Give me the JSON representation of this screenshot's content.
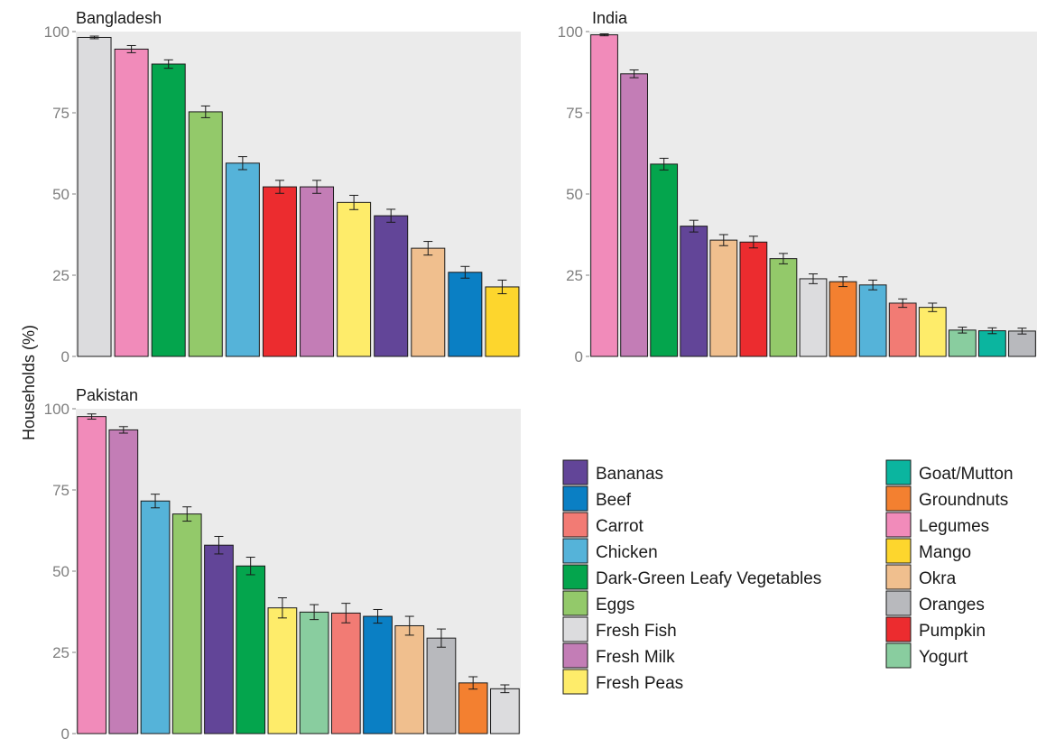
{
  "chart_data": {
    "type": "bar",
    "ylabel": "Households (%)",
    "ylim": [
      0,
      100
    ],
    "yticks": [
      0,
      25,
      50,
      75,
      100
    ],
    "error_bars": true,
    "grid": false,
    "legend_position": "bottom-right",
    "colors": {
      "Bananas": "#624598",
      "Beef": "#0a7fc4",
      "Carrot": "#f27b74",
      "Chicken": "#55b3d9",
      "Dark-Green Leafy Vegetables": "#04a54d",
      "Eggs": "#93c96a",
      "Fresh Fish": "#dcdcde",
      "Fresh Milk": "#c37db6",
      "Fresh Peas": "#feec6a",
      "Goat/Mutton": "#0bb59f",
      "Groundnuts": "#f38030",
      "Legumes": "#f18bba",
      "Mango": "#fdd62d",
      "Okra": "#f0bf8e",
      "Oranges": "#b8b9bd",
      "Pumpkin": "#ec2c2f",
      "Yogurt": "#89cd9f"
    },
    "panels": [
      {
        "title": "Bangladesh",
        "categories": [
          "Fresh Fish",
          "Legumes",
          "Dark-Green Leafy Vegetables",
          "Eggs",
          "Chicken",
          "Pumpkin",
          "Fresh Milk",
          "Fresh Peas",
          "Bananas",
          "Okra",
          "Beef",
          "Mango"
        ],
        "values": [
          98.2,
          94.6,
          90.0,
          75.3,
          59.5,
          52.2,
          52.2,
          47.4,
          43.3,
          33.3,
          25.9,
          21.4
        ],
        "errors": [
          0.4,
          1.1,
          1.3,
          1.8,
          2.0,
          2.0,
          2.0,
          2.2,
          2.0,
          2.1,
          1.8,
          2.1
        ]
      },
      {
        "title": "India",
        "categories": [
          "Legumes",
          "Fresh Milk",
          "Dark-Green Leafy Vegetables",
          "Bananas",
          "Okra",
          "Pumpkin",
          "Eggs",
          "Fresh Fish",
          "Groundnuts",
          "Chicken",
          "Carrot",
          "Fresh Peas",
          "Yogurt",
          "Goat/Mutton",
          "Oranges"
        ],
        "values": [
          99.0,
          87.0,
          59.2,
          40.1,
          35.8,
          35.2,
          30.1,
          23.9,
          23.0,
          22.0,
          16.4,
          15.1,
          8.1,
          7.9,
          7.8
        ],
        "errors": [
          0.3,
          1.2,
          1.8,
          1.8,
          1.7,
          1.8,
          1.6,
          1.5,
          1.5,
          1.5,
          1.3,
          1.3,
          0.9,
          0.9,
          0.9
        ]
      },
      {
        "title": "Pakistan",
        "categories": [
          "Legumes",
          "Fresh Milk",
          "Chicken",
          "Eggs",
          "Bananas",
          "Dark-Green Leafy Vegetables",
          "Fresh Peas",
          "Yogurt",
          "Carrot",
          "Beef",
          "Okra",
          "Oranges",
          "Groundnuts",
          "Fresh Fish"
        ],
        "values": [
          97.6,
          93.5,
          71.6,
          67.6,
          58.0,
          51.6,
          38.7,
          37.4,
          37.1,
          36.1,
          33.2,
          29.4,
          15.6,
          13.8
        ],
        "errors": [
          0.8,
          1.0,
          2.1,
          2.2,
          2.7,
          2.7,
          3.1,
          2.3,
          3.0,
          2.1,
          2.9,
          2.8,
          1.9,
          1.2
        ]
      }
    ],
    "legend": {
      "column_1": [
        "Bananas",
        "Beef",
        "Carrot",
        "Chicken",
        "Dark-Green Leafy Vegetables",
        "Eggs",
        "Fresh Fish",
        "Fresh Milk",
        "Fresh Peas"
      ],
      "column_2": [
        "Goat/Mutton",
        "Groundnuts",
        "Legumes",
        "Mango",
        "Okra",
        "Oranges",
        "Pumpkin",
        "Yogurt"
      ]
    }
  }
}
